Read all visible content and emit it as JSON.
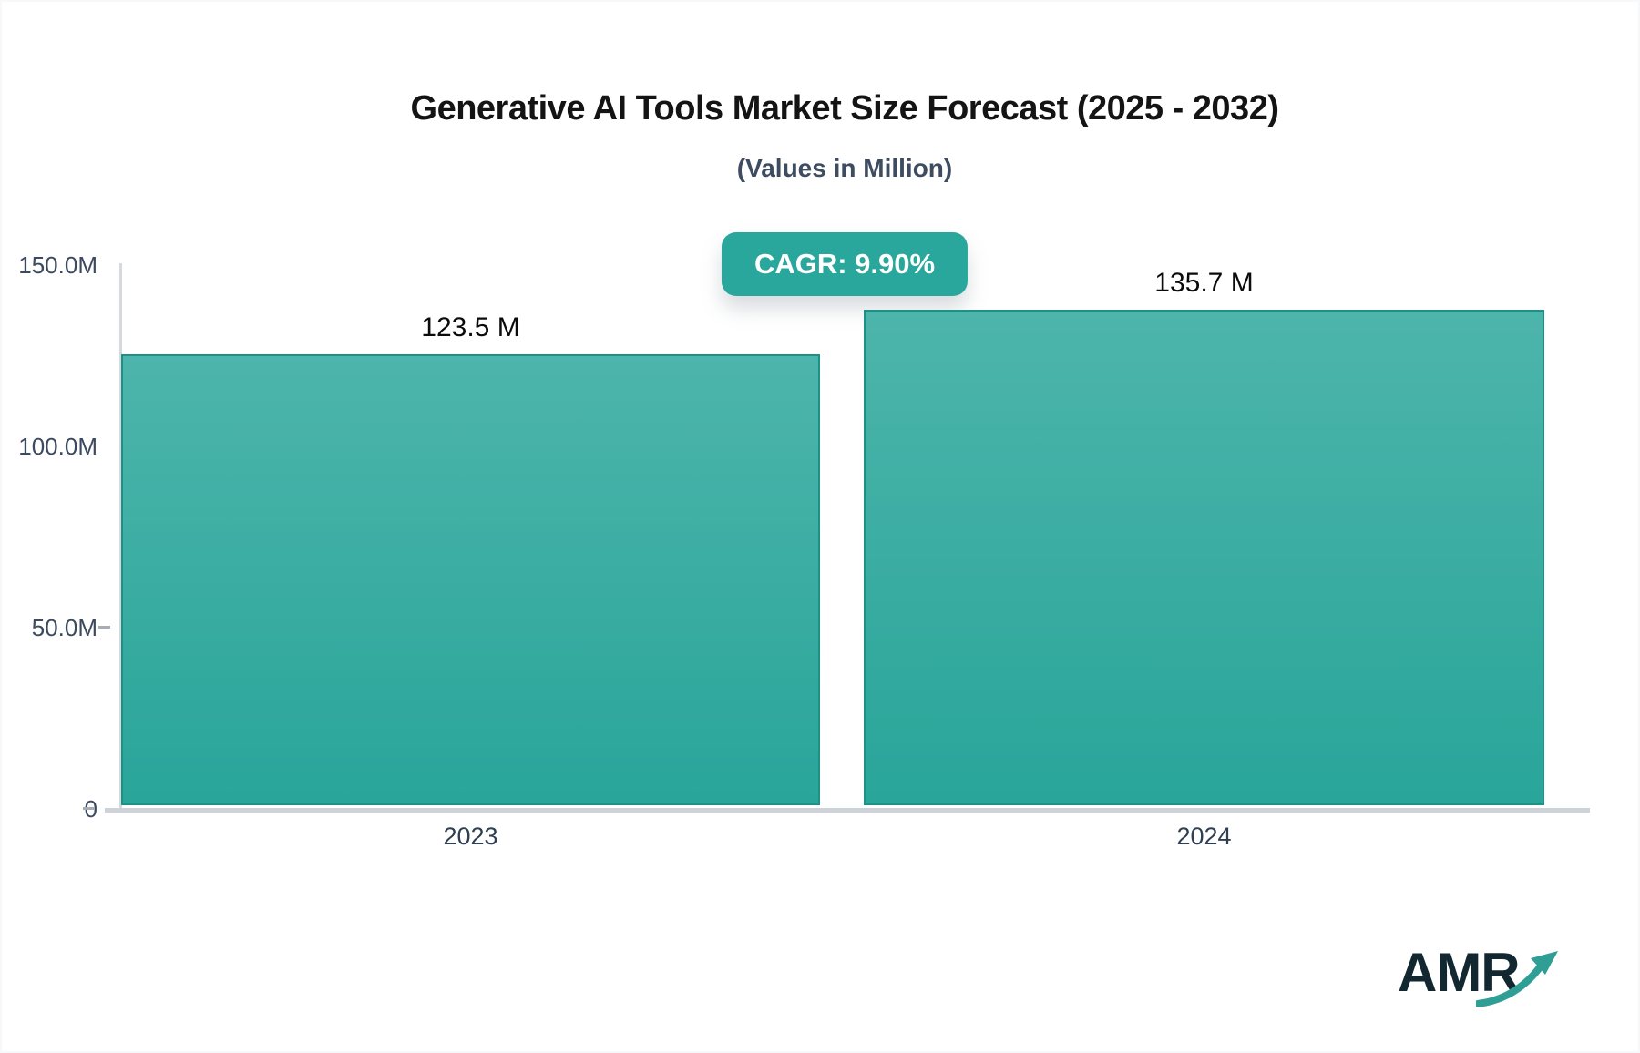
{
  "header": {
    "title": "Generative AI Tools Market Size Forecast (2025 - 2032)",
    "subtitle": "(Values in Million)"
  },
  "badge": {
    "label": "CAGR: 9.90%",
    "background": "#2aa79c",
    "text_color": "#ffffff"
  },
  "chart_data": {
    "type": "bar",
    "title": "Generative AI Tools Market Size Forecast (2025 - 2032)",
    "subtitle": "(Values in Million)",
    "unit": "Million",
    "cagr_label": "CAGR: 9.90%",
    "categories": [
      "2023",
      "2024"
    ],
    "values": [
      123.5,
      135.7
    ],
    "value_labels": [
      "123.5 M",
      "135.7 M"
    ],
    "xlabel": "",
    "ylabel": "",
    "ylim": [
      0,
      150
    ],
    "ytick_values": [
      0,
      50,
      100,
      150
    ],
    "ytick_labels": [
      "0",
      "50.0M",
      "100.0M",
      "150.0M"
    ],
    "grid": false,
    "legend": "none",
    "bar_gradient_top": "#4db5ab",
    "bar_gradient_bottom": "#29a59a",
    "bar_border_color": "#1b9187"
  },
  "logo": {
    "text": "AMR",
    "arrow_icon": "growth-arrow-icon",
    "text_color": "#122730",
    "arrow_color": "#2f9f95"
  }
}
